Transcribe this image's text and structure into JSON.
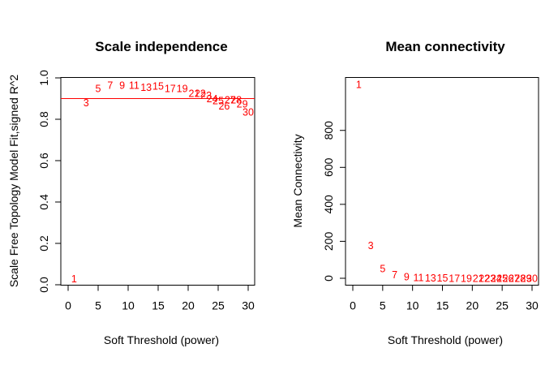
{
  "chart_data": [
    {
      "type": "scatter",
      "title": "Scale independence",
      "xlabel": "Soft Threshold (power)",
      "ylabel": "Scale Free Topology Model Fit,signed R^2",
      "xlim": [
        0,
        30
      ],
      "ylim": [
        0,
        1
      ],
      "xticks": [
        "0",
        "5",
        "10",
        "15",
        "20",
        "25",
        "30"
      ],
      "yticks": [
        "0.0",
        "0.2",
        "0.4",
        "0.6",
        "0.8",
        "1.0"
      ],
      "grid": false,
      "hline": 0.9,
      "line_color": "#ff0000",
      "point_color": "#ff0000",
      "points": [
        {
          "label": "1",
          "x": 1,
          "y": 0.03
        },
        {
          "label": "3",
          "x": 3,
          "y": 0.88
        },
        {
          "label": "5",
          "x": 5,
          "y": 0.95
        },
        {
          "label": "7",
          "x": 7,
          "y": 0.965
        },
        {
          "label": "9",
          "x": 9,
          "y": 0.965
        },
        {
          "label": "11",
          "x": 11,
          "y": 0.965
        },
        {
          "label": "13",
          "x": 13,
          "y": 0.955
        },
        {
          "label": "15",
          "x": 15,
          "y": 0.96
        },
        {
          "label": "17",
          "x": 17,
          "y": 0.95
        },
        {
          "label": "19",
          "x": 19,
          "y": 0.95
        },
        {
          "label": "21",
          "x": 21,
          "y": 0.925
        },
        {
          "label": "22",
          "x": 22,
          "y": 0.925
        },
        {
          "label": "23",
          "x": 23,
          "y": 0.915
        },
        {
          "label": "24",
          "x": 24,
          "y": 0.9
        },
        {
          "label": "25",
          "x": 25,
          "y": 0.89
        },
        {
          "label": "26",
          "x": 26,
          "y": 0.865
        },
        {
          "label": "27",
          "x": 27,
          "y": 0.895
        },
        {
          "label": "28",
          "x": 28,
          "y": 0.895
        },
        {
          "label": "29",
          "x": 29,
          "y": 0.875
        },
        {
          "label": "30",
          "x": 30,
          "y": 0.835
        }
      ]
    },
    {
      "type": "scatter",
      "title": "Mean connectivity",
      "xlabel": "Soft Threshold (power)",
      "ylabel": "Mean Connectivity",
      "xlim": [
        0,
        30
      ],
      "ylim": [
        0,
        1085
      ],
      "xticks": [
        "0",
        "5",
        "10",
        "15",
        "20",
        "25",
        "30"
      ],
      "yticks": [
        "0",
        "200",
        "400",
        "600",
        "800"
      ],
      "grid": false,
      "point_color": "#ff0000",
      "points": [
        {
          "label": "1",
          "x": 1,
          "y": 1050
        },
        {
          "label": "3",
          "x": 3,
          "y": 178
        },
        {
          "label": "5",
          "x": 5,
          "y": 52
        },
        {
          "label": "7",
          "x": 7,
          "y": 20
        },
        {
          "label": "9",
          "x": 9,
          "y": 9
        },
        {
          "label": "11",
          "x": 11,
          "y": 4
        },
        {
          "label": "13",
          "x": 13,
          "y": 3
        },
        {
          "label": "15",
          "x": 15,
          "y": 2
        },
        {
          "label": "17",
          "x": 17,
          "y": 1
        },
        {
          "label": "19",
          "x": 19,
          "y": 1
        },
        {
          "label": "21",
          "x": 21,
          "y": 0
        },
        {
          "label": "22",
          "x": 22,
          "y": 0
        },
        {
          "label": "23",
          "x": 23,
          "y": 0
        },
        {
          "label": "24",
          "x": 24,
          "y": 0
        },
        {
          "label": "25",
          "x": 25,
          "y": 0
        },
        {
          "label": "26",
          "x": 26,
          "y": 0
        },
        {
          "label": "27",
          "x": 27,
          "y": 0
        },
        {
          "label": "28",
          "x": 28,
          "y": 0
        },
        {
          "label": "29",
          "x": 29,
          "y": 0
        },
        {
          "label": "30",
          "x": 30,
          "y": 0
        }
      ]
    }
  ]
}
